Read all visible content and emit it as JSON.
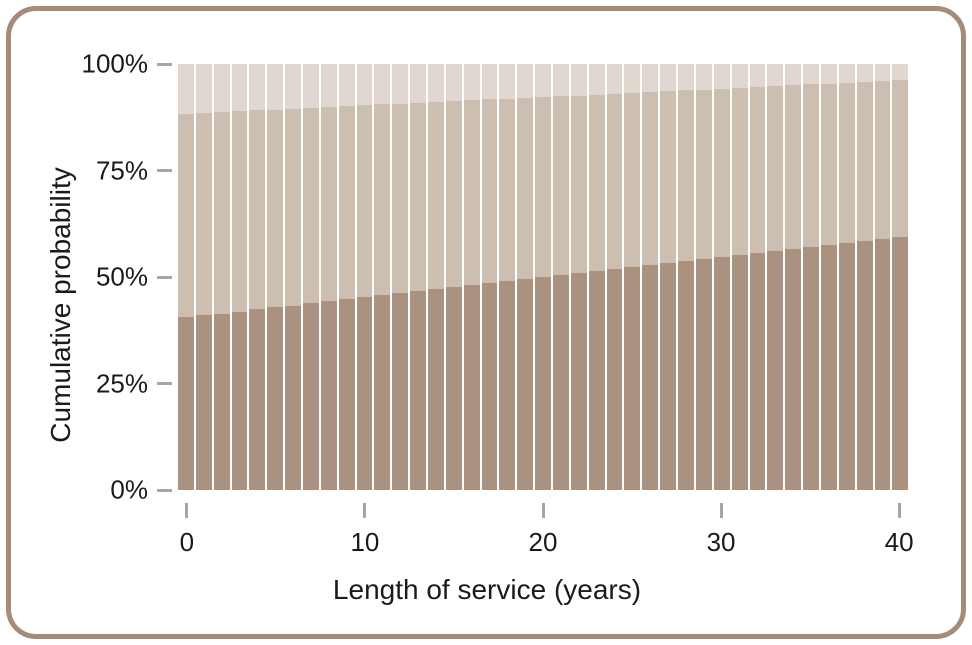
{
  "card": {
    "border_color": "#a58b78",
    "background": "#ffffff"
  },
  "chart_data": {
    "type": "bar",
    "variant": "stacked-percent",
    "title": "",
    "xlabel": "Length of service (years)",
    "ylabel": "Cumulative probability",
    "x": [
      0,
      1,
      2,
      3,
      4,
      5,
      6,
      7,
      8,
      9,
      10,
      11,
      12,
      13,
      14,
      15,
      16,
      17,
      18,
      19,
      20,
      21,
      22,
      23,
      24,
      25,
      26,
      27,
      28,
      29,
      30,
      31,
      32,
      33,
      34,
      35,
      36,
      37,
      38,
      39,
      40
    ],
    "ylim": [
      0,
      100
    ],
    "grid": false,
    "legend": "none",
    "bar_gap_color": "#ffffff",
    "axis_tick_color": "#a6a6a6",
    "text_color": "#1a1a1a",
    "y_ticks": [
      {
        "value": 0,
        "label": "0%"
      },
      {
        "value": 25,
        "label": "25%"
      },
      {
        "value": 50,
        "label": "50%"
      },
      {
        "value": 75,
        "label": "75%"
      },
      {
        "value": 100,
        "label": "100%"
      }
    ],
    "x_ticks": [
      {
        "value": 0,
        "label": "0"
      },
      {
        "value": 10,
        "label": "10"
      },
      {
        "value": 20,
        "label": "20"
      },
      {
        "value": 30,
        "label": "30"
      },
      {
        "value": 40,
        "label": "40"
      }
    ],
    "series": [
      {
        "name": "bottom-segment",
        "color": "#ab9180",
        "cumulative": [
          40.5,
          41.0,
          41.4,
          41.9,
          42.4,
          42.9,
          43.3,
          43.8,
          44.3,
          44.8,
          45.2,
          45.7,
          46.2,
          46.6,
          47.1,
          47.6,
          48.1,
          48.5,
          49.0,
          49.5,
          50.0,
          50.4,
          50.9,
          51.4,
          51.8,
          52.3,
          52.8,
          53.3,
          53.7,
          54.2,
          54.7,
          55.1,
          55.6,
          56.1,
          56.6,
          57.0,
          57.5,
          58.0,
          58.5,
          58.9,
          59.4
        ]
      },
      {
        "name": "middle-segment",
        "color": "#ccbeb1",
        "cumulative": [
          88.3,
          88.5,
          88.7,
          88.9,
          89.1,
          89.3,
          89.5,
          89.7,
          89.9,
          90.1,
          90.3,
          90.5,
          90.7,
          90.9,
          91.1,
          91.3,
          91.5,
          91.7,
          91.9,
          92.1,
          92.3,
          92.4,
          92.6,
          92.8,
          93.0,
          93.2,
          93.4,
          93.6,
          93.8,
          94.0,
          94.2,
          94.4,
          94.6,
          94.8,
          95.0,
          95.2,
          95.4,
          95.6,
          95.8,
          96.0,
          96.2
        ]
      },
      {
        "name": "top-segment",
        "color": "#e0d7d0",
        "cumulative": [
          100,
          100,
          100,
          100,
          100,
          100,
          100,
          100,
          100,
          100,
          100,
          100,
          100,
          100,
          100,
          100,
          100,
          100,
          100,
          100,
          100,
          100,
          100,
          100,
          100,
          100,
          100,
          100,
          100,
          100,
          100,
          100,
          100,
          100,
          100,
          100,
          100,
          100,
          100,
          100,
          100
        ]
      }
    ]
  }
}
